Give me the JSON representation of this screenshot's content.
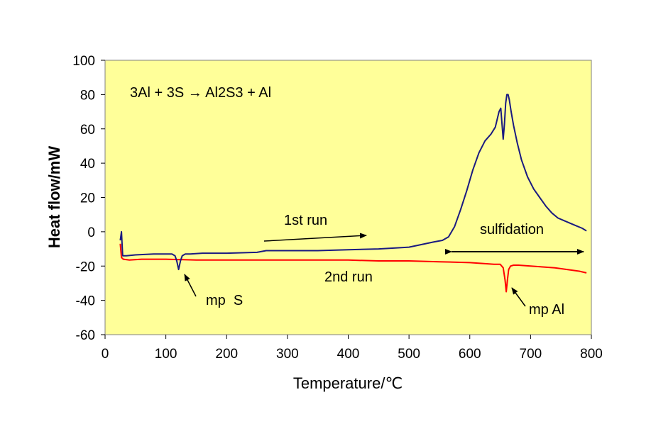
{
  "chart_data": {
    "type": "line",
    "xlabel": "Temperature/℃",
    "ylabel": "Heat flow/mW",
    "xlim": [
      0,
      800
    ],
    "ylim": [
      -60,
      100
    ],
    "x_ticks": [
      "0",
      "100",
      "200",
      "300",
      "400",
      "500",
      "600",
      "700",
      "800"
    ],
    "y_ticks": [
      "100",
      "80",
      "60",
      "40",
      "20",
      "0",
      "-20",
      "-40",
      "-60"
    ],
    "grid": false,
    "plot_background": "#FFFF99",
    "series": [
      {
        "name": "1st run",
        "color": "#1A1A80",
        "x": [
          25,
          27,
          29,
          35,
          50,
          80,
          110,
          115,
          118,
          121,
          124,
          127,
          132,
          140,
          160,
          200,
          250,
          265,
          270,
          300,
          350,
          400,
          450,
          500,
          520,
          540,
          555,
          565,
          575,
          585,
          595,
          605,
          615,
          625,
          635,
          642,
          648,
          651,
          653,
          655,
          657,
          659,
          661,
          663,
          665,
          668,
          672,
          678,
          685,
          695,
          705,
          715,
          725,
          735,
          745,
          755,
          765,
          775,
          785,
          792
        ],
        "y": [
          -5,
          0,
          -14,
          -14,
          -13.5,
          -13,
          -13,
          -14,
          -17,
          -22,
          -17,
          -14,
          -13,
          -13,
          -12.5,
          -12.5,
          -12,
          -11,
          -11,
          -11,
          -11,
          -10.5,
          -10,
          -9,
          -7.5,
          -6,
          -5,
          -3,
          3,
          13,
          24,
          36,
          46,
          53,
          57,
          61,
          70,
          72,
          63,
          54,
          63,
          75,
          80,
          80,
          77,
          70,
          62,
          52,
          42,
          32,
          25,
          20,
          15,
          11,
          8,
          6.5,
          5,
          3.5,
          2,
          0.5
        ]
      },
      {
        "name": "2nd run",
        "color": "#FF0000",
        "x": [
          25,
          27,
          30,
          40,
          60,
          100,
          150,
          200,
          250,
          300,
          350,
          400,
          450,
          500,
          550,
          600,
          640,
          650,
          655,
          658,
          660,
          662,
          664,
          667,
          672,
          680,
          700,
          720,
          740,
          760,
          780,
          792
        ],
        "y": [
          -7,
          -15,
          -16,
          -16.5,
          -16,
          -16,
          -16.5,
          -16.5,
          -16.5,
          -16.5,
          -16.5,
          -16.5,
          -17,
          -17,
          -17.5,
          -18,
          -19,
          -19,
          -21,
          -28,
          -35,
          -28,
          -22,
          -20,
          -19.5,
          -19.5,
          -20,
          -20.5,
          -21,
          -22,
          -23,
          -24
        ]
      }
    ],
    "annotations": {
      "equation": "3Al + 3S → Al2S3 + Al",
      "first_run": "1st run",
      "second_run": "2nd run",
      "mp_s": "mp  S",
      "mp_al": "mp Al",
      "sulfidation": "sulfidation"
    }
  }
}
